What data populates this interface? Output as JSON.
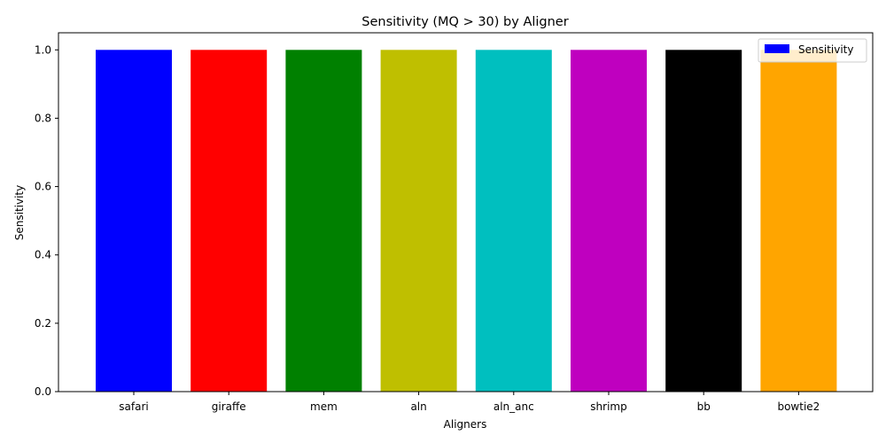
{
  "chart_data": {
    "type": "bar",
    "title": "Sensitivity (MQ > 30) by Aligner",
    "xlabel": "Aligners",
    "ylabel": "Sensitivity",
    "categories": [
      "safari",
      "giraffe",
      "mem",
      "aln",
      "aln_anc",
      "shrimp",
      "bb",
      "bowtie2"
    ],
    "values": [
      1.0,
      1.0,
      1.0,
      1.0,
      1.0,
      1.0,
      1.0,
      1.0
    ],
    "colors": [
      "#0000ff",
      "#ff0000",
      "#008000",
      "#bfbf00",
      "#00bfbf",
      "#bf00bf",
      "#000000",
      "#ffa500"
    ],
    "ylim": [
      0,
      1.05
    ],
    "yticks": [
      "0.0",
      "0.2",
      "0.4",
      "0.6",
      "0.8",
      "1.0"
    ],
    "legend": {
      "label": "Sensitivity",
      "color": "#0000ff",
      "position": "top-right"
    },
    "grid": false
  }
}
